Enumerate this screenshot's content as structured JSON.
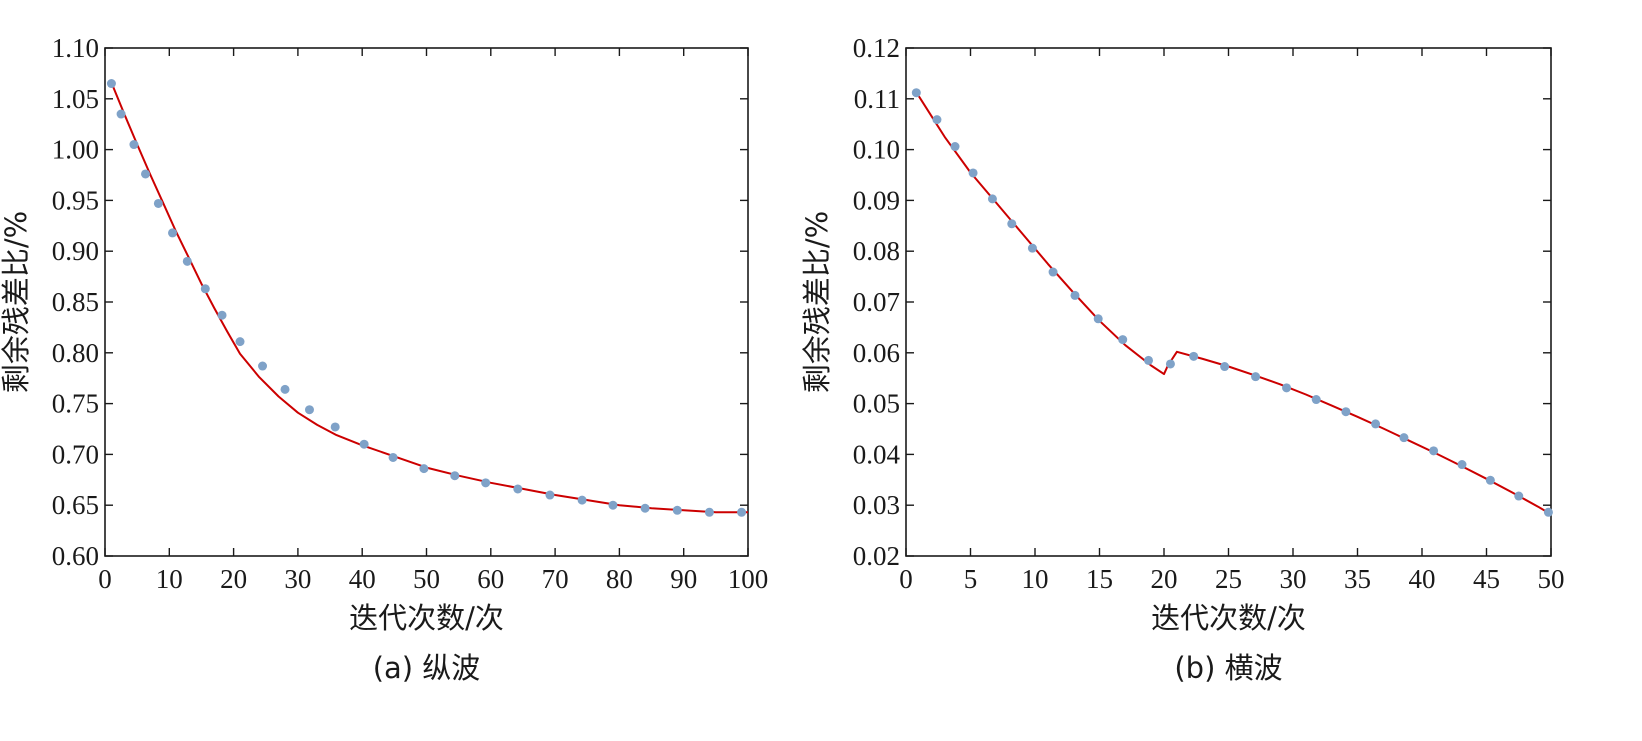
{
  "chart_data": [
    {
      "type": "line",
      "caption": "(a) 纵波",
      "xlabel": "迭代次数/次",
      "ylabel": "剩余残差比/%",
      "xlim": [
        0,
        100
      ],
      "ylim": [
        0.6,
        1.1
      ],
      "xticks": [
        0,
        10,
        20,
        30,
        40,
        50,
        60,
        70,
        80,
        90,
        100
      ],
      "xtick_labels": [
        "0",
        "10",
        "20",
        "30",
        "40",
        "50",
        "60",
        "70",
        "80",
        "90",
        "100"
      ],
      "yticks": [
        0.6,
        0.65,
        0.7,
        0.75,
        0.8,
        0.85,
        0.9,
        0.95,
        1.0,
        1.05,
        1.1
      ],
      "ytick_labels": [
        "0.60",
        "0.65",
        "0.70",
        "0.75",
        "0.80",
        "0.85",
        "0.90",
        "0.95",
        "1.00",
        "1.05",
        "1.10"
      ],
      "grid": false,
      "line_color": "#cc0000",
      "marker_color": "#7fa2c8",
      "curve": {
        "x": [
          1,
          3,
          5,
          7,
          9,
          11,
          13,
          15,
          17,
          19,
          21,
          24,
          27,
          30,
          33,
          36,
          40,
          45,
          50,
          55,
          60,
          65,
          70,
          75,
          80,
          85,
          90,
          95,
          100
        ],
        "y": [
          1.066,
          1.035,
          1.005,
          0.976,
          0.948,
          0.92,
          0.894,
          0.868,
          0.844,
          0.821,
          0.799,
          0.776,
          0.757,
          0.741,
          0.729,
          0.719,
          0.709,
          0.698,
          0.687,
          0.679,
          0.672,
          0.666,
          0.66,
          0.655,
          0.65,
          0.647,
          0.645,
          0.643,
          0.643
        ]
      },
      "markers": {
        "x": [
          1,
          2.5,
          4.5,
          6.3,
          8.3,
          10.5,
          12.8,
          15.6,
          18.2,
          21,
          24.5,
          28,
          31.8,
          35.8,
          40.3,
          44.8,
          49.6,
          54.4,
          59.2,
          64.2,
          69.2,
          74.2,
          79,
          84,
          89,
          94,
          99
        ],
        "y": [
          1.065,
          1.035,
          1.005,
          0.976,
          0.947,
          0.918,
          0.89,
          0.863,
          0.837,
          0.811,
          0.787,
          0.764,
          0.744,
          0.727,
          0.71,
          0.697,
          0.686,
          0.679,
          0.672,
          0.666,
          0.66,
          0.655,
          0.65,
          0.647,
          0.645,
          0.643,
          0.643
        ]
      }
    },
    {
      "type": "line",
      "caption": "(b) 横波",
      "xlabel": "迭代次数/次",
      "ylabel": "剩余残差比/%",
      "xlim": [
        0,
        50
      ],
      "ylim": [
        0.02,
        0.12
      ],
      "xticks": [
        0,
        5,
        10,
        15,
        20,
        25,
        30,
        35,
        40,
        45,
        50
      ],
      "xtick_labels": [
        "0",
        "5",
        "10",
        "15",
        "20",
        "25",
        "30",
        "35",
        "40",
        "45",
        "50"
      ],
      "yticks": [
        0.02,
        0.03,
        0.04,
        0.05,
        0.06,
        0.07,
        0.08,
        0.09,
        0.1,
        0.11,
        0.12
      ],
      "ytick_labels": [
        "0.02",
        "0.03",
        "0.04",
        "0.05",
        "0.06",
        "0.07",
        "0.08",
        "0.09",
        "0.10",
        "0.11",
        "0.12"
      ],
      "grid": false,
      "line_color": "#cc0000",
      "marker_color": "#7fa2c8",
      "curve": {
        "x": [
          1,
          3,
          5,
          7,
          9,
          11,
          13,
          15,
          17,
          19,
          20,
          20.3,
          21,
          23,
          25,
          27,
          29,
          31,
          33,
          35,
          37,
          39,
          41,
          43,
          45,
          47,
          49,
          50
        ],
        "y": [
          0.1105,
          0.1025,
          0.0955,
          0.0895,
          0.0835,
          0.0775,
          0.0718,
          0.0663,
          0.0615,
          0.0575,
          0.0558,
          0.0575,
          0.0602,
          0.0588,
          0.0573,
          0.0556,
          0.0538,
          0.0518,
          0.0496,
          0.0474,
          0.0451,
          0.0427,
          0.0403,
          0.0378,
          0.0352,
          0.0325,
          0.0297,
          0.0282
        ]
      },
      "markers": {
        "x": [
          0.8,
          2.4,
          3.8,
          5.2,
          6.7,
          8.2,
          9.8,
          11.4,
          13.1,
          14.9,
          16.8,
          18.8,
          20.5,
          22.3,
          24.7,
          27.1,
          29.5,
          31.8,
          34.1,
          36.4,
          38.6,
          40.9,
          43.1,
          45.3,
          47.5,
          49.8
        ],
        "y": [
          0.1112,
          0.1059,
          0.1006,
          0.0954,
          0.0903,
          0.0854,
          0.0806,
          0.0759,
          0.0713,
          0.0667,
          0.0626,
          0.0585,
          0.0578,
          0.0593,
          0.0573,
          0.0553,
          0.0531,
          0.0508,
          0.0484,
          0.046,
          0.0433,
          0.0407,
          0.038,
          0.0349,
          0.0318,
          0.0286
        ]
      }
    }
  ]
}
